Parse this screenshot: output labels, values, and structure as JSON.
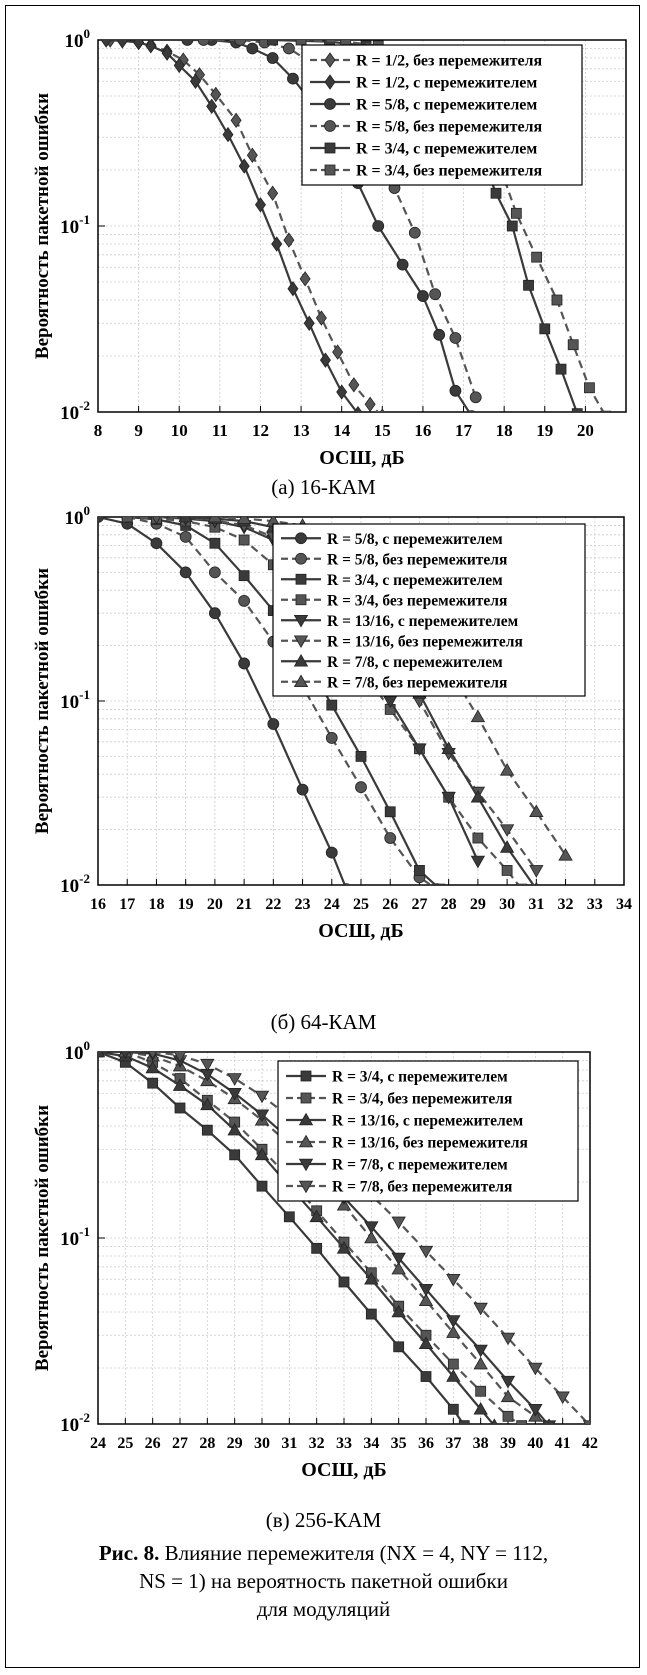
{
  "figure": {
    "caption_label": "Рис. 8.",
    "caption_line1": "Влияние перемежителя (NX = 4, NY = 112,",
    "caption_line2": "NS = 1) на вероятность пакетной ошибки",
    "caption_line3": "для модуляций"
  },
  "colors": {
    "solid": "#3a3a3a",
    "dashed": "#555555",
    "grid": "#cccccc"
  },
  "chart_data": [
    {
      "type": "line",
      "subtitle": "(a) 16-КАМ",
      "xlabel": "ОСШ, дБ",
      "ylabel": "Вероятность пакетной ошибки",
      "xlim": [
        8,
        21
      ],
      "ylim": [
        0.01,
        1
      ],
      "yscale": "log",
      "grid": true,
      "legend_position": "top-right",
      "xticks": [
        8,
        9,
        10,
        11,
        12,
        13,
        14,
        15,
        16,
        17,
        18,
        19,
        20
      ],
      "yticks": [
        {
          "value": 1,
          "base": "10",
          "exp": "0"
        },
        {
          "value": 0.1,
          "base": "10",
          "exp": "-1"
        },
        {
          "value": 0.01,
          "base": "10",
          "exp": "-2"
        }
      ],
      "series": [
        {
          "name": "R = 1/2, без перемежителя",
          "marker": "diamond",
          "dash": true,
          "x": [
            8.3,
            8.6,
            9.0,
            9.3,
            9.7,
            10.1,
            10.5,
            10.9,
            11.4,
            11.8,
            12.3,
            12.7,
            13.1,
            13.5,
            13.9,
            14.3,
            14.7,
            15.0
          ],
          "y": [
            1,
            0.99,
            0.97,
            0.94,
            0.87,
            0.78,
            0.65,
            0.51,
            0.37,
            0.24,
            0.15,
            0.084,
            0.052,
            0.032,
            0.021,
            0.014,
            0.011,
            0.0095
          ]
        },
        {
          "name": "R = 1/2, с перемежителем",
          "marker": "diamond",
          "dash": false,
          "x": [
            8.2,
            8.6,
            9.0,
            9.3,
            9.7,
            10.0,
            10.4,
            10.8,
            11.2,
            11.6,
            12.0,
            12.4,
            12.8,
            13.2,
            13.6,
            14.0,
            14.4
          ],
          "y": [
            1,
            0.99,
            0.97,
            0.93,
            0.85,
            0.73,
            0.6,
            0.44,
            0.31,
            0.21,
            0.13,
            0.08,
            0.046,
            0.03,
            0.019,
            0.0128,
            0.0098
          ]
        },
        {
          "name": "R = 5/8, с перемежителем",
          "marker": "circle",
          "dash": false,
          "x": [
            10.2,
            10.8,
            11.4,
            11.8,
            12.3,
            12.8,
            13.3,
            13.8,
            14.4,
            14.9,
            15.5,
            16.0,
            16.4,
            16.8,
            17.2
          ],
          "y": [
            1,
            1,
            0.97,
            0.9,
            0.8,
            0.62,
            0.45,
            0.3,
            0.17,
            0.1,
            0.062,
            0.042,
            0.026,
            0.013,
            0.0095
          ]
        },
        {
          "name": "R = 5/8, без перемежителя",
          "marker": "circle",
          "dash": true,
          "x": [
            10.6,
            11.5,
            12.1,
            12.7,
            13.2,
            13.8,
            14.3,
            14.8,
            15.3,
            15.8,
            16.3,
            16.8,
            17.3
          ],
          "y": [
            1,
            1,
            0.97,
            0.9,
            0.77,
            0.6,
            0.42,
            0.28,
            0.16,
            0.092,
            0.043,
            0.025,
            0.012
          ]
        },
        {
          "name": "R = 3/4, с перемежителем",
          "marker": "square",
          "dash": false,
          "x": [
            12.3,
            13.7,
            14.6,
            15.3,
            15.9,
            16.4,
            16.9,
            17.4,
            17.8,
            18.2,
            18.6,
            19.0,
            19.4,
            19.8
          ],
          "y": [
            1,
            0.98,
            0.93,
            0.85,
            0.72,
            0.56,
            0.4,
            0.25,
            0.15,
            0.1,
            0.048,
            0.028,
            0.017,
            0.0098
          ]
        },
        {
          "name": "R = 3/4, без перемежителя",
          "marker": "square",
          "dash": true,
          "x": [
            13.0,
            14.1,
            14.9,
            15.7,
            16.3,
            16.8,
            17.3,
            17.8,
            18.3,
            18.8,
            19.3,
            19.7,
            20.1,
            20.5
          ],
          "y": [
            1,
            0.98,
            0.93,
            0.84,
            0.7,
            0.55,
            0.4,
            0.24,
            0.117,
            0.068,
            0.04,
            0.023,
            0.0135,
            0.0095
          ]
        }
      ]
    },
    {
      "type": "line",
      "subtitle": "(б) 64-КАМ",
      "xlabel": "ОСШ, дБ",
      "ylabel": "Вероятность пакетной ошибки",
      "xlim": [
        16,
        34
      ],
      "ylim": [
        0.01,
        1
      ],
      "yscale": "log",
      "grid": true,
      "legend_position": "top-right",
      "xticks": [
        16,
        17,
        18,
        19,
        20,
        21,
        22,
        23,
        24,
        25,
        26,
        27,
        28,
        29,
        30,
        31,
        32,
        33,
        34
      ],
      "yticks": [
        {
          "value": 1,
          "base": "10",
          "exp": "0"
        },
        {
          "value": 0.1,
          "base": "10",
          "exp": "-1"
        },
        {
          "value": 0.01,
          "base": "10",
          "exp": "-2"
        }
      ],
      "series": [
        {
          "name": "R = 5/8, с перемежителем",
          "marker": "circle",
          "dash": false,
          "x": [
            16,
            17,
            18,
            19,
            20,
            21,
            22,
            23,
            24,
            24.5
          ],
          "y": [
            1,
            0.92,
            0.72,
            0.5,
            0.3,
            0.16,
            0.075,
            0.033,
            0.015,
            0.0095
          ]
        },
        {
          "name": "R = 5/8, без перемежителя",
          "marker": "circle",
          "dash": true,
          "x": [
            17,
            18,
            19,
            20,
            21,
            22,
            23,
            24,
            25,
            26,
            27,
            27.6
          ],
          "y": [
            1,
            0.92,
            0.78,
            0.5,
            0.35,
            0.21,
            0.12,
            0.063,
            0.034,
            0.018,
            0.011,
            0.0095
          ]
        },
        {
          "name": "R = 3/4, с перемежителем",
          "marker": "square",
          "dash": false,
          "x": [
            17,
            18,
            19,
            20,
            21,
            22,
            23,
            24,
            25,
            26,
            27,
            27.7
          ],
          "y": [
            1,
            0.97,
            0.9,
            0.72,
            0.48,
            0.31,
            0.18,
            0.095,
            0.05,
            0.025,
            0.012,
            0.0095
          ]
        },
        {
          "name": "R = 3/4, без перемежителя",
          "marker": "square",
          "dash": true,
          "x": [
            17,
            18,
            19,
            20,
            21,
            22,
            23,
            24,
            25,
            26,
            27,
            28,
            29,
            30,
            30.5
          ],
          "y": [
            1,
            0.98,
            0.95,
            0.88,
            0.75,
            0.55,
            0.38,
            0.24,
            0.15,
            0.09,
            0.055,
            0.03,
            0.018,
            0.012,
            0.0095
          ]
        },
        {
          "name": "R = 13/16, с перемежителем",
          "marker": "triangle-down",
          "dash": false,
          "x": [
            18,
            19,
            20,
            21,
            22,
            23,
            24,
            25,
            26,
            27,
            28,
            29
          ],
          "y": [
            1,
            0.98,
            0.95,
            0.88,
            0.75,
            0.52,
            0.32,
            0.18,
            0.1,
            0.055,
            0.03,
            0.0135
          ]
        },
        {
          "name": "R = 13/16, без перемежителя",
          "marker": "triangle-down",
          "dash": true,
          "x": [
            18,
            19,
            20,
            21,
            22,
            23,
            24,
            25,
            26,
            27,
            28,
            29,
            30,
            31
          ],
          "y": [
            1,
            0.99,
            0.96,
            0.9,
            0.78,
            0.6,
            0.42,
            0.27,
            0.17,
            0.1,
            0.052,
            0.032,
            0.02,
            0.012
          ]
        },
        {
          "name": "R = 7/8, с перемежителем",
          "marker": "triangle-up",
          "dash": false,
          "x": [
            19,
            20,
            21,
            22,
            23,
            24,
            25,
            26,
            27,
            28,
            29,
            30,
            31
          ],
          "y": [
            1,
            0.98,
            0.95,
            0.88,
            0.76,
            0.55,
            0.36,
            0.2,
            0.11,
            0.055,
            0.03,
            0.016,
            0.0095
          ]
        },
        {
          "name": "R = 7/8, без перемежителя",
          "marker": "triangle-up",
          "dash": true,
          "x": [
            20,
            21,
            22,
            23,
            24,
            25,
            26,
            27,
            28,
            29,
            30,
            31,
            32
          ],
          "y": [
            1,
            0.98,
            0.95,
            0.9,
            0.8,
            0.62,
            0.42,
            0.26,
            0.15,
            0.082,
            0.042,
            0.025,
            0.0145
          ]
        }
      ]
    },
    {
      "type": "line",
      "subtitle": "(в) 256-КАМ",
      "xlabel": "ОСШ, дБ",
      "ylabel": "Вероятность пакетной ошибки",
      "xlim": [
        24,
        42
      ],
      "ylim": [
        0.01,
        1
      ],
      "yscale": "log",
      "grid": true,
      "legend_position": "top-right",
      "xticks": [
        24,
        25,
        26,
        27,
        28,
        29,
        30,
        31,
        32,
        33,
        34,
        35,
        36,
        37,
        38,
        39,
        40,
        41,
        42
      ],
      "yticks": [
        {
          "value": 1,
          "base": "10",
          "exp": "0"
        },
        {
          "value": 0.1,
          "base": "10",
          "exp": "-1"
        },
        {
          "value": 0.01,
          "base": "10",
          "exp": "-2"
        }
      ],
      "series": [
        {
          "name": "R = 3/4, с перемежителем",
          "marker": "square",
          "dash": false,
          "x": [
            24,
            25,
            26,
            27,
            28,
            29,
            30,
            31,
            32,
            33,
            34,
            35,
            36,
            37,
            37.4
          ],
          "y": [
            1,
            0.88,
            0.68,
            0.5,
            0.38,
            0.28,
            0.19,
            0.13,
            0.088,
            0.058,
            0.039,
            0.026,
            0.018,
            0.012,
            0.0098
          ]
        },
        {
          "name": "R = 3/4, без перемежителя",
          "marker": "square",
          "dash": true,
          "x": [
            25,
            26,
            27,
            28,
            29,
            30,
            31,
            32,
            33,
            34,
            35,
            36,
            37,
            38,
            39,
            39.5
          ],
          "y": [
            1,
            0.88,
            0.72,
            0.55,
            0.42,
            0.3,
            0.21,
            0.14,
            0.095,
            0.065,
            0.043,
            0.03,
            0.021,
            0.015,
            0.011,
            0.0098
          ]
        },
        {
          "name": "R = 13/16, с перемежителем",
          "marker": "triangle-up",
          "dash": false,
          "x": [
            24,
            25,
            26,
            27,
            28,
            29,
            30,
            31,
            32,
            33,
            34,
            35,
            36,
            37,
            38,
            38.5
          ],
          "y": [
            1,
            0.95,
            0.82,
            0.66,
            0.52,
            0.38,
            0.28,
            0.19,
            0.13,
            0.088,
            0.06,
            0.04,
            0.027,
            0.018,
            0.012,
            0.0098
          ]
        },
        {
          "name": "R = 13/16, без перемежителя",
          "marker": "triangle-up",
          "dash": true,
          "x": [
            25,
            26,
            27,
            28,
            29,
            30,
            31,
            32,
            33,
            34,
            35,
            36,
            37,
            38,
            39,
            40,
            40.5
          ],
          "y": [
            1,
            0.95,
            0.84,
            0.7,
            0.56,
            0.43,
            0.32,
            0.22,
            0.15,
            0.1,
            0.068,
            0.046,
            0.031,
            0.021,
            0.014,
            0.011,
            0.0098
          ]
        },
        {
          "name": "R = 7/8, с перемежителем",
          "marker": "triangle-down",
          "dash": false,
          "x": [
            25,
            26,
            27,
            28,
            29,
            30,
            31,
            32,
            33,
            34,
            35,
            36,
            37,
            38,
            39,
            40,
            40.5
          ],
          "y": [
            1,
            0.98,
            0.9,
            0.76,
            0.6,
            0.46,
            0.34,
            0.24,
            0.165,
            0.115,
            0.078,
            0.053,
            0.036,
            0.025,
            0.017,
            0.012,
            0.0098
          ]
        },
        {
          "name": "R = 7/8, без перемежителя",
          "marker": "triangle-down",
          "dash": true,
          "x": [
            26,
            27,
            28,
            29,
            30,
            31,
            32,
            33,
            34,
            35,
            36,
            37,
            38,
            39,
            40,
            41,
            42
          ],
          "y": [
            1,
            0.96,
            0.86,
            0.72,
            0.58,
            0.45,
            0.34,
            0.24,
            0.17,
            0.122,
            0.085,
            0.06,
            0.042,
            0.029,
            0.02,
            0.014,
            0.0098
          ]
        }
      ]
    }
  ]
}
